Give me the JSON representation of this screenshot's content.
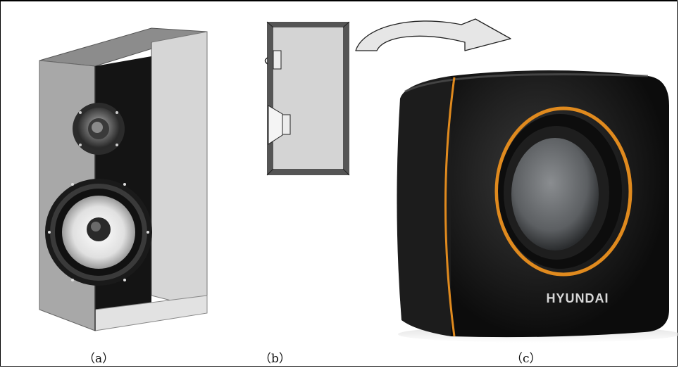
{
  "figure": {
    "panels": [
      {
        "id": "a",
        "caption": "（a）"
      },
      {
        "id": "b",
        "caption": "（b）"
      },
      {
        "id": "c",
        "caption": "（c）"
      }
    ],
    "brand_text": "HYUNDAI",
    "colors": {
      "cabinet_gray": "#a8a8a8",
      "cabinet_light": "#d6d6d6",
      "speaker_black": "#141414",
      "accent_orange": "#e08a1e"
    }
  }
}
